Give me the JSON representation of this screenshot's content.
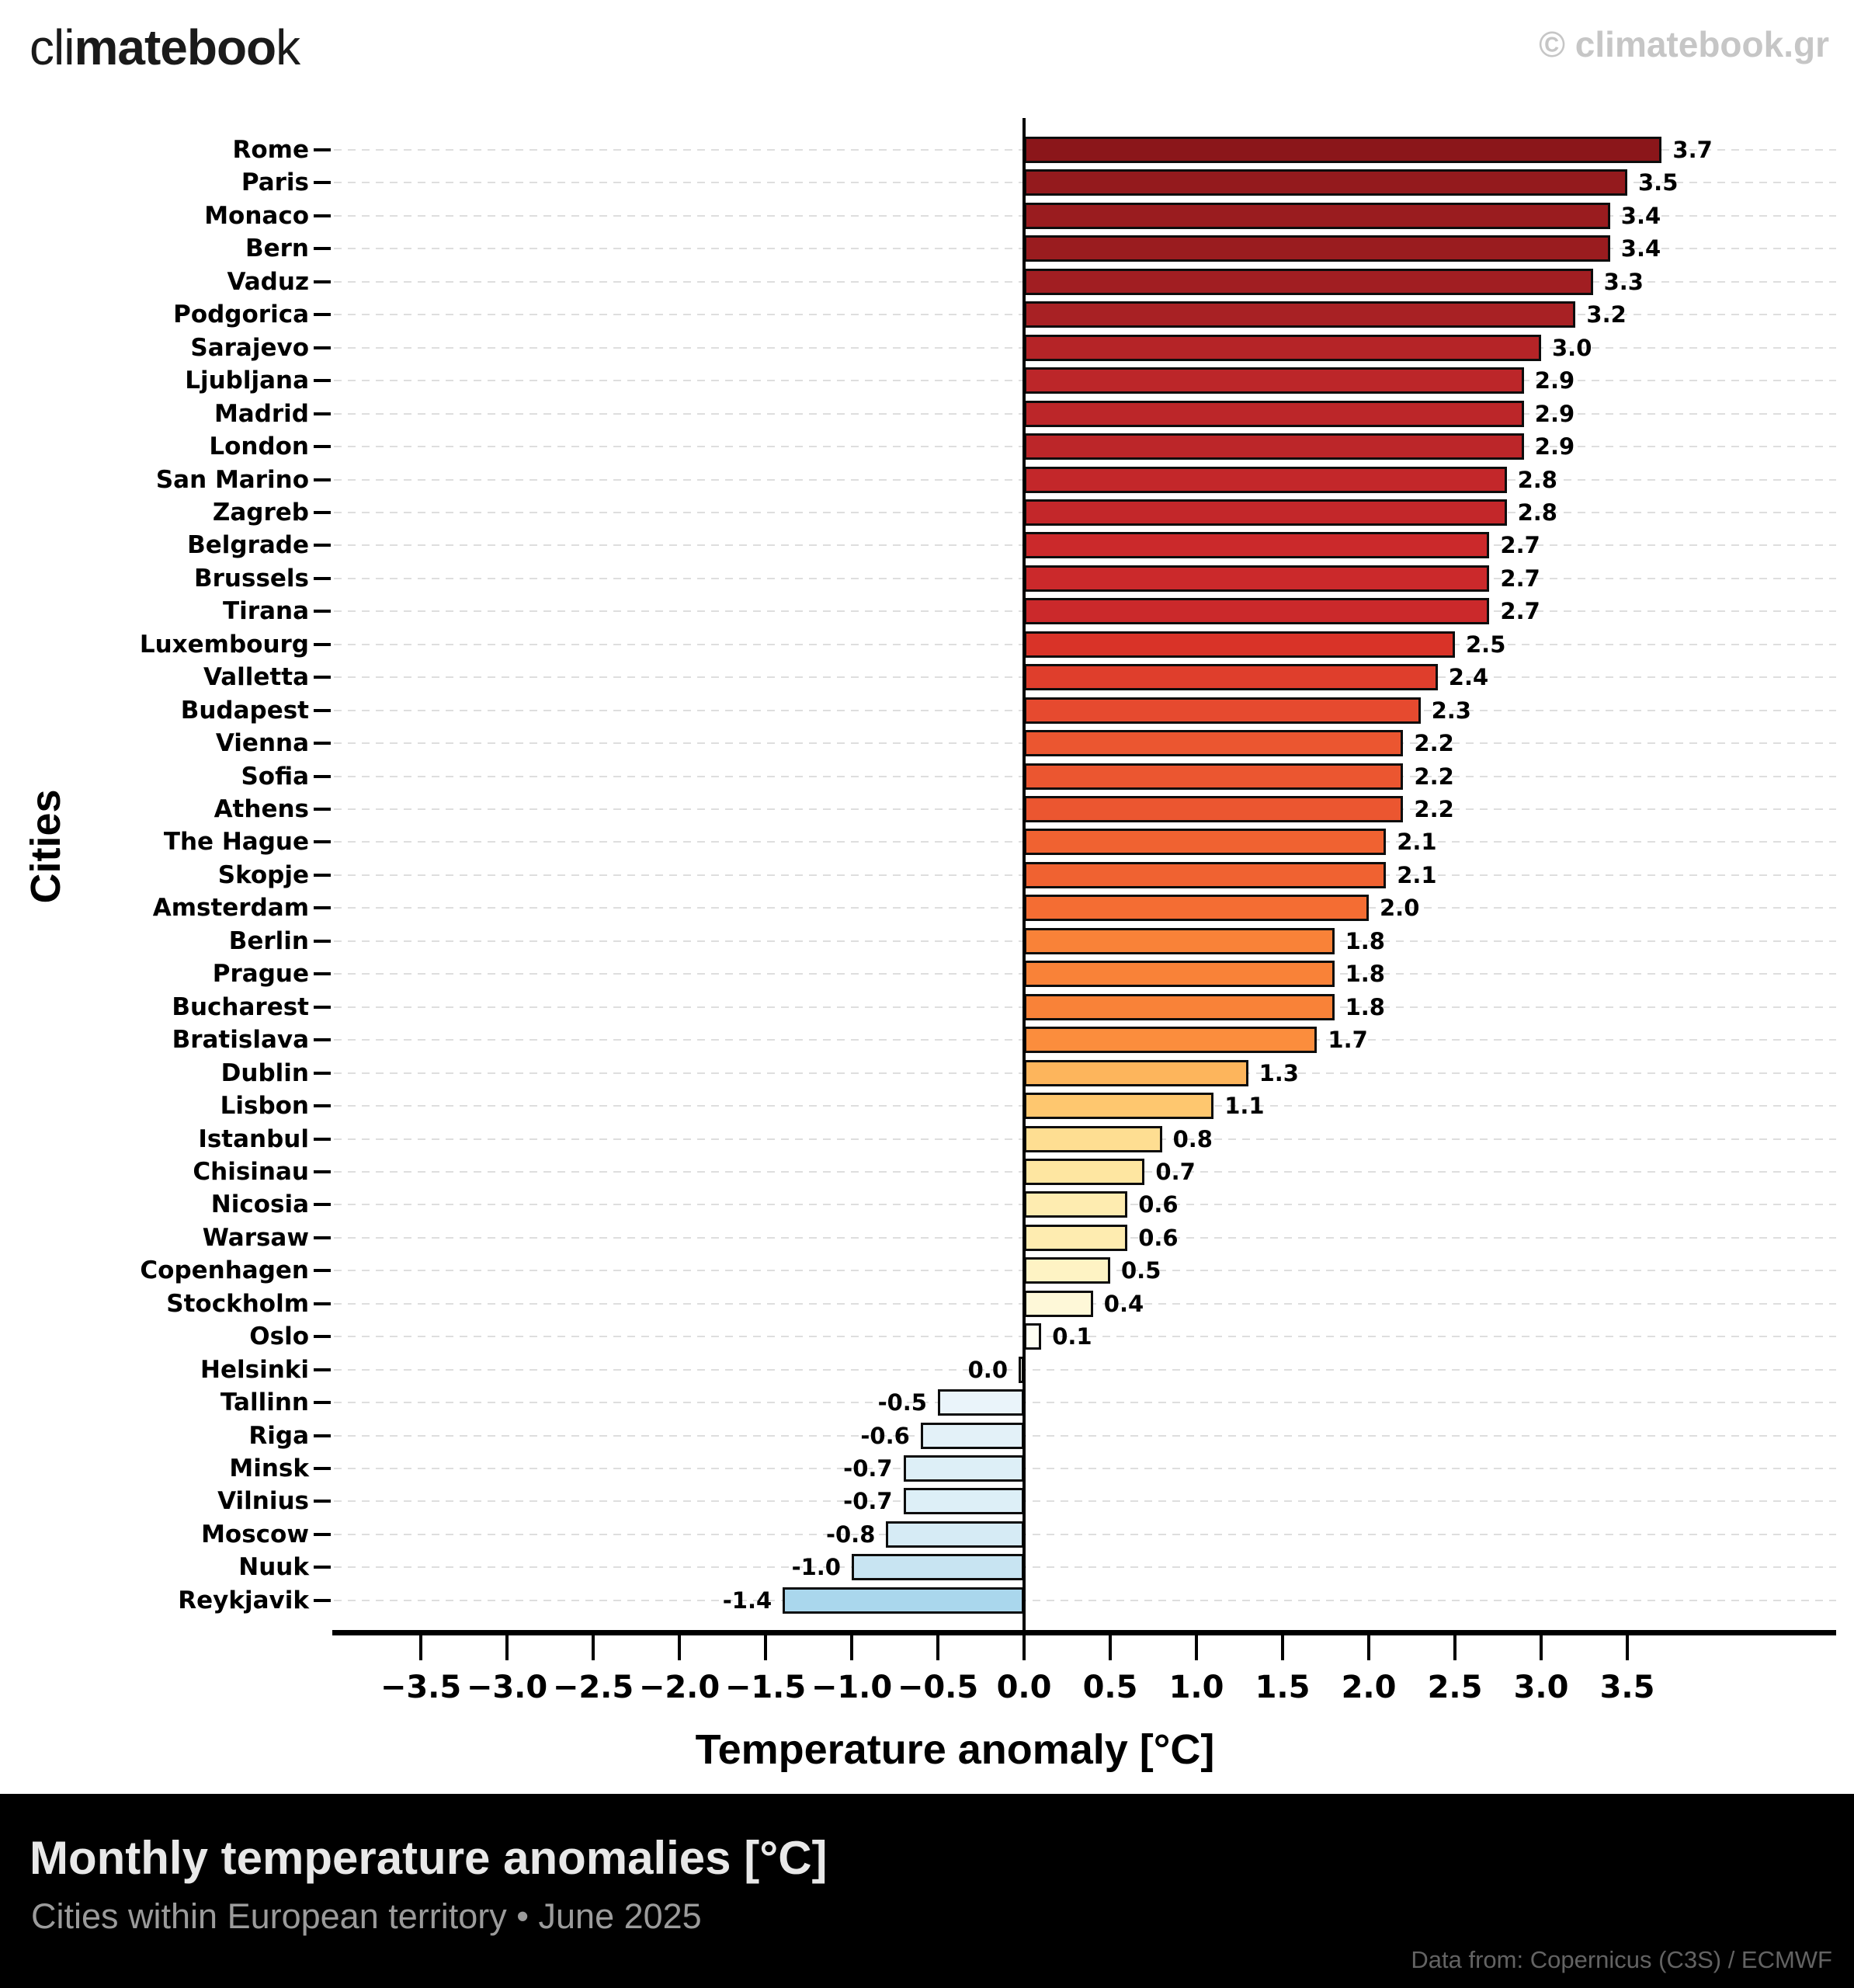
{
  "header": {
    "logo_prefix": "cli",
    "logo_bold": "mateboo",
    "logo_suffix": "k",
    "watermark": "© climatebook.gr"
  },
  "chart_data": {
    "type": "bar",
    "orientation": "horizontal",
    "xlabel": "Temperature anomaly [°C]",
    "ylabel": "Cities",
    "xlim": [
      -4.0,
      4.7
    ],
    "grid": "horizontal-dashed",
    "bar_border_color": "#0d0d0d",
    "xticks": [
      -3.5,
      -3.0,
      -2.5,
      -2.0,
      -1.5,
      -1.0,
      -0.5,
      0.0,
      0.5,
      1.0,
      1.5,
      2.0,
      2.5,
      3.0,
      3.5
    ],
    "xtick_labels": [
      "−3.5",
      "−3.0",
      "−2.5",
      "−2.0",
      "−1.5",
      "−1.0",
      "−0.5",
      "0.0",
      "0.5",
      "1.0",
      "1.5",
      "2.0",
      "2.5",
      "3.0",
      "3.5"
    ],
    "categories": [
      "Rome",
      "Paris",
      "Monaco",
      "Bern",
      "Vaduz",
      "Podgorica",
      "Sarajevo",
      "Ljubljana",
      "Madrid",
      "London",
      "San Marino",
      "Zagreb",
      "Belgrade",
      "Brussels",
      "Tirana",
      "Luxembourg",
      "Valletta",
      "Budapest",
      "Vienna",
      "Sofia",
      "Athens",
      "The Hague",
      "Skopje",
      "Amsterdam",
      "Berlin",
      "Prague",
      "Bucharest",
      "Bratislava",
      "Dublin",
      "Lisbon",
      "Istanbul",
      "Chisinau",
      "Nicosia",
      "Warsaw",
      "Copenhagen",
      "Stockholm",
      "Oslo",
      "Helsinki",
      "Tallinn",
      "Riga",
      "Minsk",
      "Vilnius",
      "Moscow",
      "Nuuk",
      "Reykjavik"
    ],
    "values": [
      3.7,
      3.5,
      3.4,
      3.4,
      3.3,
      3.2,
      3.0,
      2.9,
      2.9,
      2.9,
      2.8,
      2.8,
      2.7,
      2.7,
      2.7,
      2.5,
      2.4,
      2.3,
      2.2,
      2.2,
      2.2,
      2.1,
      2.1,
      2.0,
      1.8,
      1.8,
      1.8,
      1.7,
      1.3,
      1.1,
      0.8,
      0.7,
      0.6,
      0.6,
      0.5,
      0.4,
      0.1,
      0.0,
      -0.5,
      -0.6,
      -0.7,
      -0.7,
      -0.8,
      -1.0,
      -1.4
    ],
    "value_labels": [
      "3.7",
      "3.5",
      "3.4",
      "3.4",
      "3.3",
      "3.2",
      "3.0",
      "2.9",
      "2.9",
      "2.9",
      "2.8",
      "2.8",
      "2.7",
      "2.7",
      "2.7",
      "2.5",
      "2.4",
      "2.3",
      "2.2",
      "2.2",
      "2.2",
      "2.1",
      "2.1",
      "2.0",
      "1.8",
      "1.8",
      "1.8",
      "1.7",
      "1.3",
      "1.1",
      "0.8",
      "0.7",
      "0.6",
      "0.6",
      "0.5",
      "0.4",
      "0.1",
      "0.0",
      "-0.5",
      "-0.6",
      "-0.7",
      "-0.7",
      "-0.8",
      "-1.0",
      "-1.4"
    ],
    "bar_colors": [
      "#8B161A",
      "#941A1D",
      "#9A1C1F",
      "#9A1C1F",
      "#A11E22",
      "#A82124",
      "#B52427",
      "#BC2629",
      "#BC2629",
      "#BC2629",
      "#C3272A",
      "#C3272A",
      "#CB292B",
      "#CB292B",
      "#CB292B",
      "#D93328",
      "#DF3E2C",
      "#E64A2F",
      "#EB5630",
      "#EB5630",
      "#EB5630",
      "#F06231",
      "#F06231",
      "#F46D33",
      "#F98238",
      "#F98238",
      "#F98238",
      "#FB8D3D",
      "#FDB55C",
      "#FEC76F",
      "#FEDE92",
      "#FEE6A1",
      "#FEECB0",
      "#FEECB0",
      "#FEF3C4",
      "#FEF8D8",
      "#FEFEF2",
      "#FBFDF3",
      "#EAF4FA",
      "#E3F1F8",
      "#DDEFF7",
      "#DDEFF7",
      "#D6EBF5",
      "#C8E4F2",
      "#AAD7ED"
    ]
  },
  "footer": {
    "title": "Monthly temperature anomalies [°C]",
    "subtitle": "Cities within European territory • June 2025",
    "credit": "Data from: Copernicus (C3S) / ECMWF"
  }
}
